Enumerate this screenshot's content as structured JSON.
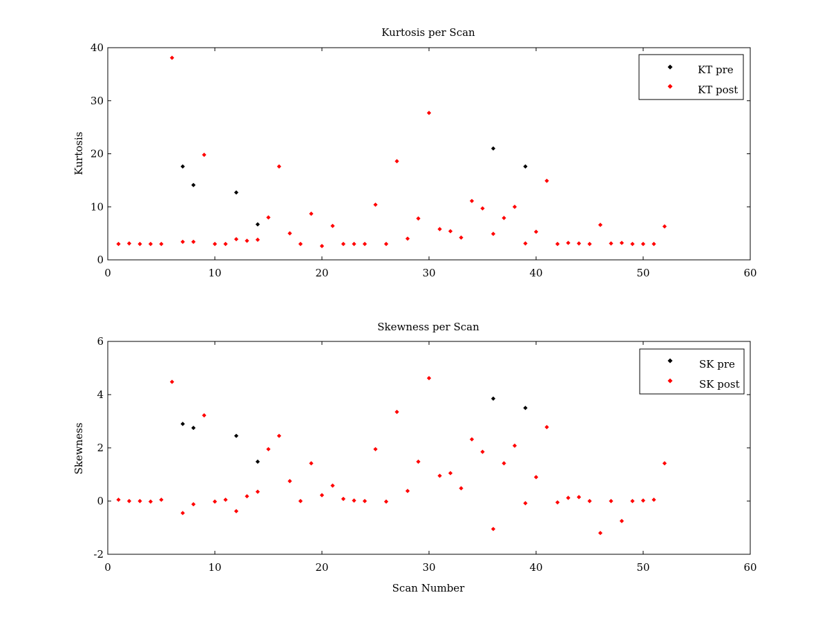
{
  "chart_data": [
    {
      "type": "scatter",
      "title": "Kurtosis per Scan",
      "xlabel": "",
      "ylabel": "Kurtosis",
      "xlim": [
        0,
        60
      ],
      "ylim": [
        0,
        40
      ],
      "xticks": [
        0,
        10,
        20,
        30,
        40,
        50,
        60
      ],
      "yticks": [
        0,
        10,
        20,
        30,
        40
      ],
      "grid": false,
      "legend_position": "top-right",
      "series": [
        {
          "name": "KT pre",
          "color": "#000000",
          "points": [
            [
              7,
              17.6
            ],
            [
              8,
              14.1
            ],
            [
              12,
              12.7
            ],
            [
              14,
              6.7
            ],
            [
              36,
              21.0
            ],
            [
              39,
              17.6
            ]
          ]
        },
        {
          "name": "KT post",
          "color": "#ff0000",
          "points": [
            [
              1,
              3.0
            ],
            [
              2,
              3.1
            ],
            [
              3,
              3.0
            ],
            [
              4,
              3.0
            ],
            [
              5,
              3.0
            ],
            [
              6,
              38.1
            ],
            [
              7,
              3.4
            ],
            [
              8,
              3.4
            ],
            [
              9,
              19.8
            ],
            [
              10,
              3.0
            ],
            [
              11,
              3.0
            ],
            [
              12,
              3.9
            ],
            [
              13,
              3.6
            ],
            [
              14,
              3.8
            ],
            [
              15,
              8.0
            ],
            [
              16,
              17.6
            ],
            [
              17,
              5.0
            ],
            [
              18,
              3.0
            ],
            [
              19,
              8.7
            ],
            [
              20,
              2.6
            ],
            [
              21,
              6.4
            ],
            [
              22,
              3.0
            ],
            [
              23,
              3.0
            ],
            [
              24,
              3.0
            ],
            [
              25,
              10.4
            ],
            [
              26,
              3.0
            ],
            [
              27,
              18.6
            ],
            [
              28,
              4.0
            ],
            [
              29,
              7.8
            ],
            [
              30,
              27.7
            ],
            [
              31,
              5.8
            ],
            [
              32,
              5.4
            ],
            [
              33,
              4.2
            ],
            [
              34,
              11.1
            ],
            [
              35,
              9.7
            ],
            [
              36,
              4.9
            ],
            [
              37,
              7.9
            ],
            [
              38,
              10.0
            ],
            [
              39,
              3.1
            ],
            [
              40,
              5.3
            ],
            [
              41,
              14.9
            ],
            [
              42,
              3.0
            ],
            [
              43,
              3.2
            ],
            [
              44,
              3.1
            ],
            [
              45,
              3.0
            ],
            [
              46,
              6.6
            ],
            [
              47,
              3.1
            ],
            [
              48,
              3.2
            ],
            [
              49,
              3.0
            ],
            [
              50,
              3.0
            ],
            [
              51,
              3.0
            ],
            [
              52,
              6.3
            ]
          ]
        }
      ]
    },
    {
      "type": "scatter",
      "title": "Skewness per Scan",
      "xlabel": "Scan Number",
      "ylabel": "Skewness",
      "xlim": [
        0,
        60
      ],
      "ylim": [
        -2,
        6
      ],
      "xticks": [
        0,
        10,
        20,
        30,
        40,
        50,
        60
      ],
      "yticks": [
        -2,
        0,
        2,
        4,
        6
      ],
      "grid": false,
      "legend_position": "top-right",
      "series": [
        {
          "name": "SK pre",
          "color": "#000000",
          "points": [
            [
              7,
              2.9
            ],
            [
              8,
              2.75
            ],
            [
              12,
              2.45
            ],
            [
              14,
              1.48
            ],
            [
              36,
              3.85
            ],
            [
              39,
              3.5
            ]
          ]
        },
        {
          "name": "SK post",
          "color": "#ff0000",
          "points": [
            [
              1,
              0.05
            ],
            [
              2,
              0.0
            ],
            [
              3,
              0.0
            ],
            [
              4,
              -0.02
            ],
            [
              5,
              0.05
            ],
            [
              6,
              4.48
            ],
            [
              7,
              -0.45
            ],
            [
              8,
              -0.12
            ],
            [
              9,
              3.22
            ],
            [
              10,
              -0.02
            ],
            [
              11,
              0.05
            ],
            [
              12,
              -0.38
            ],
            [
              13,
              0.18
            ],
            [
              14,
              0.35
            ],
            [
              15,
              1.95
            ],
            [
              16,
              2.45
            ],
            [
              17,
              0.75
            ],
            [
              18,
              0.0
            ],
            [
              19,
              1.42
            ],
            [
              20,
              0.22
            ],
            [
              21,
              0.58
            ],
            [
              22,
              0.08
            ],
            [
              23,
              0.02
            ],
            [
              24,
              0.0
            ],
            [
              25,
              1.95
            ],
            [
              26,
              -0.02
            ],
            [
              27,
              3.35
            ],
            [
              28,
              0.38
            ],
            [
              29,
              1.48
            ],
            [
              30,
              4.62
            ],
            [
              31,
              0.95
            ],
            [
              32,
              1.05
            ],
            [
              33,
              0.48
            ],
            [
              34,
              2.32
            ],
            [
              35,
              1.85
            ],
            [
              36,
              -1.05
            ],
            [
              37,
              1.42
            ],
            [
              38,
              2.08
            ],
            [
              39,
              -0.08
            ],
            [
              40,
              0.9
            ],
            [
              41,
              2.78
            ],
            [
              42,
              -0.05
            ],
            [
              43,
              0.12
            ],
            [
              44,
              0.15
            ],
            [
              45,
              0.0
            ],
            [
              46,
              -1.2
            ],
            [
              47,
              0.0
            ],
            [
              48,
              -0.75
            ],
            [
              49,
              0.0
            ],
            [
              50,
              0.02
            ],
            [
              51,
              0.05
            ],
            [
              52,
              1.42
            ]
          ]
        }
      ]
    }
  ]
}
